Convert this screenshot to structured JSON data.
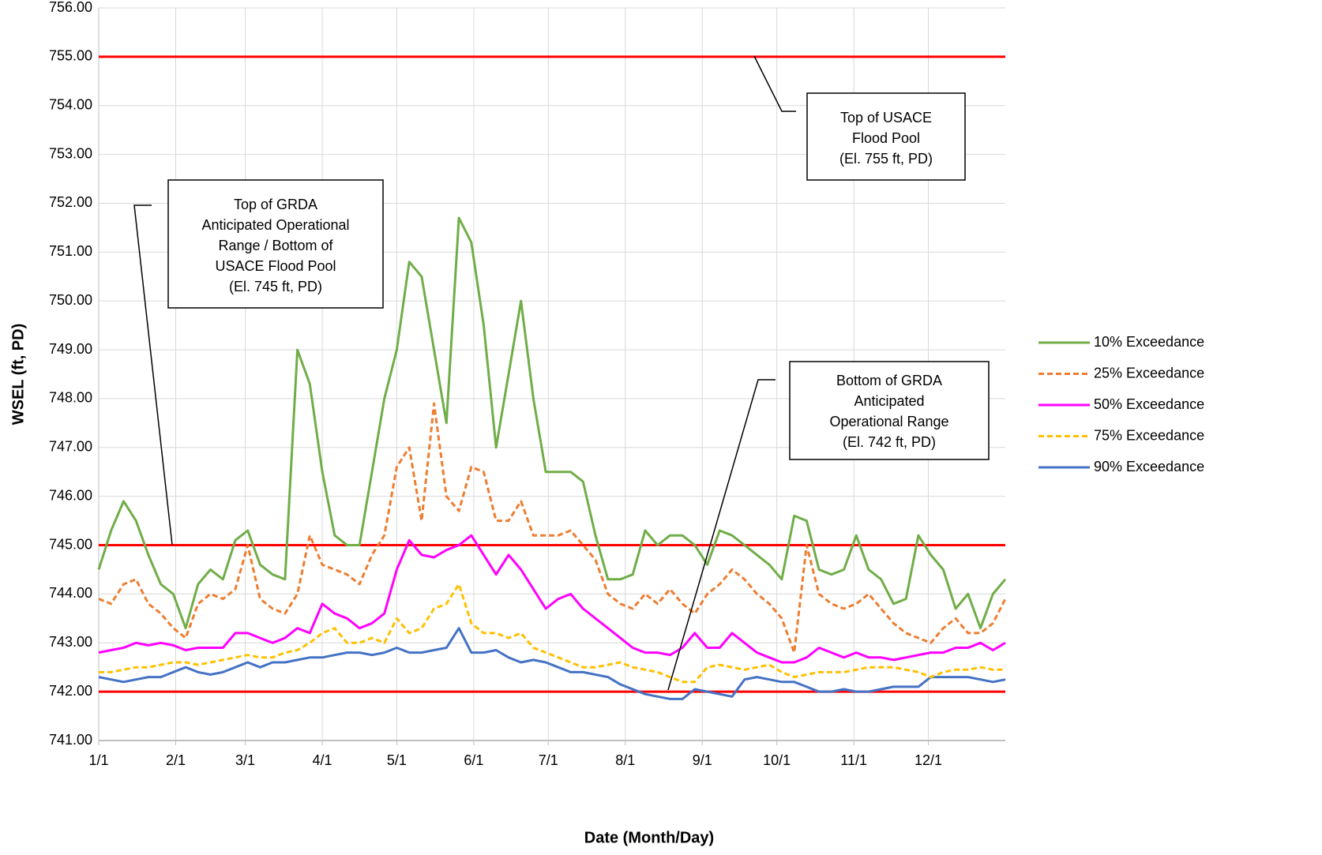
{
  "chart_data": {
    "type": "line",
    "xlabel": "Date (Month/Day)",
    "ylabel": "WSEL (ft, PD)",
    "x": [
      0,
      5,
      10,
      15,
      20,
      25,
      30,
      35,
      40,
      45,
      50,
      55,
      60,
      65,
      70,
      75,
      80,
      85,
      90,
      95,
      100,
      105,
      110,
      115,
      120,
      125,
      130,
      135,
      140,
      145,
      150,
      155,
      160,
      165,
      170,
      175,
      180,
      185,
      190,
      195,
      200,
      205,
      210,
      215,
      220,
      225,
      230,
      235,
      240,
      245,
      250,
      255,
      260,
      265,
      270,
      275,
      280,
      285,
      290,
      295,
      300,
      305,
      310,
      315,
      320,
      325,
      330,
      335,
      340,
      345,
      350,
      355,
      360,
      365
    ],
    "xlim": [
      0,
      365
    ],
    "xticks": [
      {
        "value": 0,
        "label": "1/1"
      },
      {
        "value": 31,
        "label": "2/1"
      },
      {
        "value": 59,
        "label": "3/1"
      },
      {
        "value": 90,
        "label": "4/1"
      },
      {
        "value": 120,
        "label": "5/1"
      },
      {
        "value": 151,
        "label": "6/1"
      },
      {
        "value": 181,
        "label": "7/1"
      },
      {
        "value": 212,
        "label": "8/1"
      },
      {
        "value": 243,
        "label": "9/1"
      },
      {
        "value": 273,
        "label": "10/1"
      },
      {
        "value": 304,
        "label": "11/1"
      },
      {
        "value": 334,
        "label": "12/1"
      }
    ],
    "ylim": [
      741,
      756
    ],
    "yticks": [
      {
        "value": 741,
        "label": "741.00"
      },
      {
        "value": 742,
        "label": "742.00"
      },
      {
        "value": 743,
        "label": "743.00"
      },
      {
        "value": 744,
        "label": "744.00"
      },
      {
        "value": 745,
        "label": "745.00"
      },
      {
        "value": 746,
        "label": "746.00"
      },
      {
        "value": 747,
        "label": "747.00"
      },
      {
        "value": 748,
        "label": "748.00"
      },
      {
        "value": 749,
        "label": "749.00"
      },
      {
        "value": 750,
        "label": "750.00"
      },
      {
        "value": 751,
        "label": "751.00"
      },
      {
        "value": 752,
        "label": "752.00"
      },
      {
        "value": 753,
        "label": "753.00"
      },
      {
        "value": 754,
        "label": "754.00"
      },
      {
        "value": 755,
        "label": "755.00"
      },
      {
        "value": 756,
        "label": "756.00"
      }
    ],
    "grid": true,
    "legend": "right",
    "series": [
      {
        "name": "10% Exceedance",
        "color": "#70ad47",
        "dash": "solid",
        "values": [
          744.5,
          745.3,
          745.9,
          745.5,
          744.8,
          744.2,
          744.0,
          743.3,
          744.2,
          744.5,
          744.3,
          745.1,
          745.3,
          744.6,
          744.4,
          744.3,
          749.0,
          748.3,
          746.5,
          745.2,
          745.0,
          745.0,
          746.5,
          748.0,
          749.0,
          750.8,
          750.5,
          749.0,
          747.5,
          751.7,
          751.2,
          749.5,
          747.0,
          748.5,
          750.0,
          748.0,
          746.5,
          746.5,
          746.5,
          746.3,
          745.2,
          744.3,
          744.3,
          744.4,
          745.3,
          745.0,
          745.2,
          745.2,
          745.0,
          744.6,
          745.3,
          745.2,
          745.0,
          744.8,
          744.6,
          744.3,
          745.6,
          745.5,
          744.5,
          744.4,
          744.5,
          745.2,
          744.5,
          744.3,
          743.8,
          743.9,
          745.2,
          744.8,
          744.5,
          743.7,
          744.0,
          743.3,
          744.0,
          744.3
        ]
      },
      {
        "name": "25% Exceedance",
        "color": "#ed7d31",
        "dash": "dashed",
        "values": [
          743.9,
          743.8,
          744.2,
          744.3,
          743.8,
          743.6,
          743.3,
          743.1,
          743.8,
          744.0,
          743.9,
          744.1,
          745.0,
          743.9,
          743.7,
          743.6,
          744.0,
          745.2,
          744.6,
          744.5,
          744.4,
          744.2,
          744.8,
          745.2,
          746.6,
          747.0,
          745.5,
          747.9,
          746.0,
          745.7,
          746.6,
          746.5,
          745.5,
          745.5,
          745.9,
          745.2,
          745.2,
          745.2,
          745.3,
          745.0,
          744.7,
          744.0,
          743.8,
          743.7,
          744.0,
          743.8,
          744.1,
          743.8,
          743.6,
          744.0,
          744.2,
          744.5,
          744.3,
          744.0,
          743.8,
          743.5,
          742.8,
          745.0,
          744.0,
          743.8,
          743.7,
          743.8,
          744.0,
          743.7,
          743.4,
          743.2,
          743.1,
          743.0,
          743.3,
          743.5,
          743.2,
          743.2,
          743.4,
          743.9
        ]
      },
      {
        "name": "50% Exceedance",
        "color": "#ff00ff",
        "dash": "solid",
        "values": [
          742.8,
          742.85,
          742.9,
          743.0,
          742.95,
          743.0,
          742.95,
          742.85,
          742.9,
          742.9,
          742.9,
          743.2,
          743.2,
          743.1,
          743.0,
          743.1,
          743.3,
          743.2,
          743.8,
          743.6,
          743.5,
          743.3,
          743.4,
          743.6,
          744.5,
          745.1,
          744.8,
          744.75,
          744.9,
          745.0,
          745.2,
          744.8,
          744.4,
          744.8,
          744.5,
          744.1,
          743.7,
          743.9,
          744.0,
          743.7,
          743.5,
          743.3,
          743.1,
          742.9,
          742.8,
          742.8,
          742.75,
          742.9,
          743.2,
          742.9,
          742.9,
          743.2,
          743.0,
          742.8,
          742.7,
          742.6,
          742.6,
          742.7,
          742.9,
          742.8,
          742.7,
          742.8,
          742.7,
          742.7,
          742.65,
          742.7,
          742.75,
          742.8,
          742.8,
          742.9,
          742.9,
          743.0,
          742.85,
          743.0
        ]
      },
      {
        "name": "75% Exceedance",
        "color": "#ffc000",
        "dash": "dashed",
        "values": [
          742.4,
          742.4,
          742.45,
          742.5,
          742.5,
          742.55,
          742.6,
          742.6,
          742.55,
          742.6,
          742.65,
          742.7,
          742.75,
          742.7,
          742.7,
          742.8,
          742.85,
          743.0,
          743.2,
          743.3,
          743.0,
          743.0,
          743.1,
          743.0,
          743.5,
          743.2,
          743.3,
          743.7,
          743.8,
          744.2,
          743.4,
          743.2,
          743.2,
          743.1,
          743.2,
          742.9,
          742.8,
          742.7,
          742.6,
          742.5,
          742.5,
          742.55,
          742.6,
          742.5,
          742.45,
          742.4,
          742.3,
          742.2,
          742.2,
          742.5,
          742.55,
          742.5,
          742.45,
          742.5,
          742.55,
          742.4,
          742.3,
          742.35,
          742.4,
          742.4,
          742.4,
          742.45,
          742.5,
          742.5,
          742.5,
          742.45,
          742.4,
          742.3,
          742.4,
          742.45,
          742.45,
          742.5,
          742.45,
          742.45
        ]
      },
      {
        "name": "90% Exceedance",
        "color": "#4472c4",
        "dash": "solid",
        "values": [
          742.3,
          742.25,
          742.2,
          742.25,
          742.3,
          742.3,
          742.4,
          742.5,
          742.4,
          742.35,
          742.4,
          742.5,
          742.6,
          742.5,
          742.6,
          742.6,
          742.65,
          742.7,
          742.7,
          742.75,
          742.8,
          742.8,
          742.75,
          742.8,
          742.9,
          742.8,
          742.8,
          742.85,
          742.9,
          743.3,
          742.8,
          742.8,
          742.85,
          742.7,
          742.6,
          742.65,
          742.6,
          742.5,
          742.4,
          742.4,
          742.35,
          742.3,
          742.15,
          742.05,
          741.95,
          741.9,
          741.85,
          741.85,
          742.05,
          742.0,
          741.95,
          741.9,
          742.25,
          742.3,
          742.25,
          742.2,
          742.2,
          742.1,
          742.0,
          742.0,
          742.05,
          742.0,
          742.0,
          742.05,
          742.1,
          742.1,
          742.1,
          742.3,
          742.3,
          742.3,
          742.3,
          742.25,
          742.2,
          742.25
        ]
      }
    ],
    "reference_lines": [
      {
        "value": 755,
        "color": "#ff0000"
      },
      {
        "value": 745,
        "color": "#ff0000"
      },
      {
        "value": 742,
        "color": "#ff0000"
      }
    ],
    "annotations": [
      {
        "lines": [
          "Top of USACE",
          "Flood Pool",
          "(El. 755 ft, PD)"
        ]
      },
      {
        "lines": [
          "Top of GRDA",
          "Anticipated Operational",
          "Range / Bottom of",
          "USACE Flood Pool",
          "(El. 745 ft, PD)"
        ]
      },
      {
        "lines": [
          "Bottom of GRDA",
          "Anticipated",
          "Operational Range",
          "(El. 742 ft, PD)"
        ]
      }
    ]
  }
}
